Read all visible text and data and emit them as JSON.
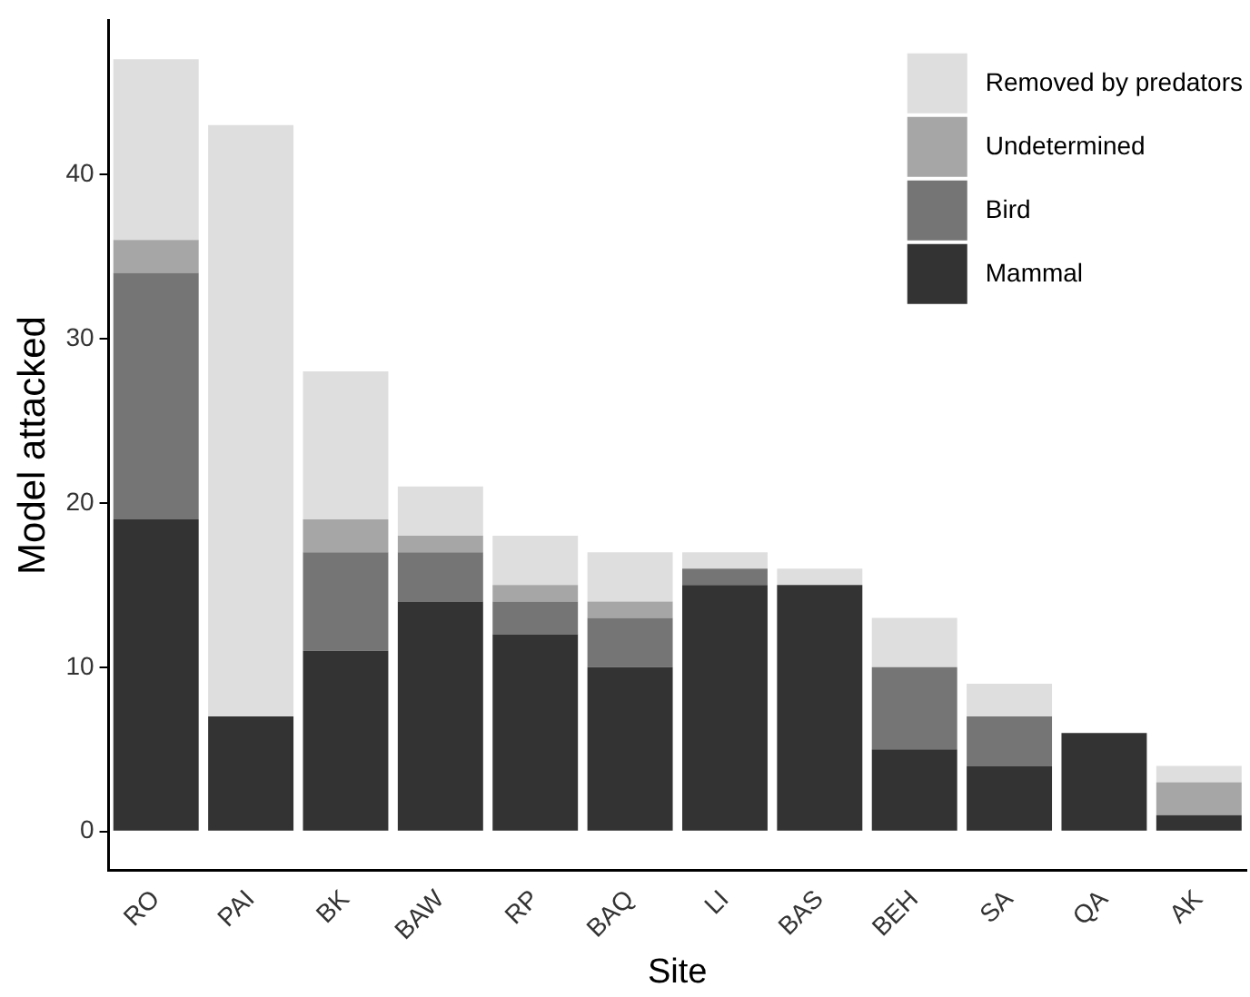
{
  "chart_data": {
    "type": "bar",
    "stacked": true,
    "xlabel": "Site",
    "ylabel": "Model attacked",
    "categories": [
      "RO",
      "PAI",
      "BK",
      "BAW",
      "RP",
      "BAQ",
      "LI",
      "BAS",
      "BEH",
      "SA",
      "QA",
      "AK"
    ],
    "series": [
      {
        "name": "Mammal",
        "color": "#333333",
        "values": [
          19,
          7,
          11,
          14,
          12,
          10,
          15,
          15,
          5,
          4,
          6,
          1
        ]
      },
      {
        "name": "Bird",
        "color": "#757575",
        "values": [
          15,
          0,
          6,
          3,
          2,
          3,
          1,
          0,
          5,
          3,
          0,
          0
        ]
      },
      {
        "name": "Undetermined",
        "color": "#a6a6a6",
        "values": [
          2,
          0,
          2,
          1,
          1,
          1,
          0,
          0,
          0,
          0,
          0,
          2
        ]
      },
      {
        "name": "Removed by predators",
        "color": "#dedede",
        "values": [
          11,
          36,
          9,
          3,
          3,
          3,
          1,
          1,
          3,
          2,
          0,
          1
        ]
      }
    ],
    "ylim": [
      -2.35,
      49.35
    ],
    "yticks": [
      0,
      10,
      20,
      30,
      40
    ],
    "grid": false,
    "legend": "top right"
  }
}
